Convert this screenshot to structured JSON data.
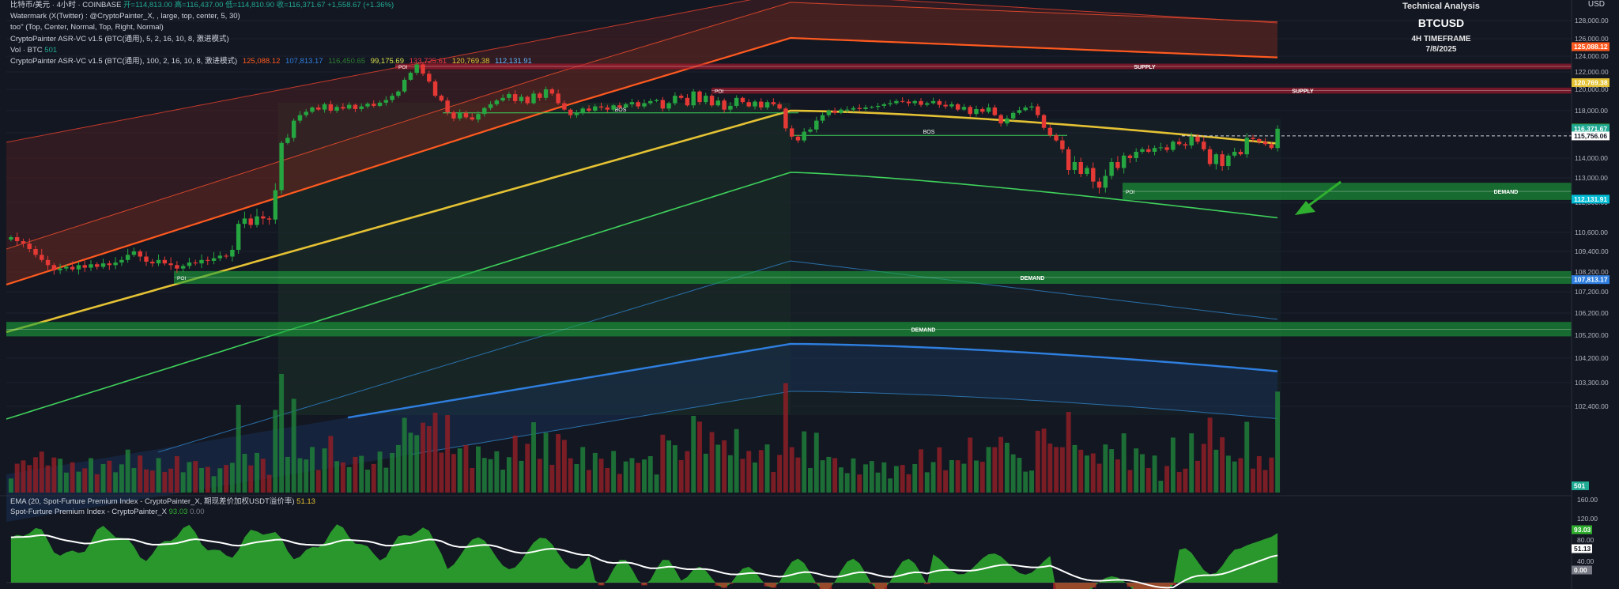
{
  "legend": {
    "main": {
      "text": "比特币/美元 · 4小时 · COINBASE",
      "o": "开=114,813.00",
      "h": "高=116,437.00",
      "l": "低=114,810.90",
      "c": "收=116,371.67",
      "chg": "+1,558.67 (+1.36%)"
    },
    "watermark_line": "Watermark (X(Twitter) : @CryptoPainter_X, , large, top, center, 5, 30)",
    "too_line": "too\" (Top, Center, Normal, Top, Right, Normal)",
    "asr1_line": "CryptoPainter ASR-VC v1.5 (BTC(通用), 5, 2, 16, 10, 8, 激进模式)",
    "vol_label": "Vol · BTC",
    "vol_value": "501",
    "asr2_label": "CryptoPainter ASR-VC v1.5 (BTC(通用), 100, 2, 16, 10, 8, 激进模式)",
    "asr2_values": [
      "125,088.12",
      "107,813.17",
      "116,450.65",
      "99,175.69",
      "133,725.61",
      "120,769.38",
      "112,131.91"
    ]
  },
  "sub_legend": {
    "ema_label": "EMA (20, Spot-Furture Premium Index - CryptoPainter_X, 期现差价加权USDT溢价率)",
    "ema_value": "51.13",
    "idx_label": "Spot-Furture Premium Index - CryptoPainter_X",
    "idx_values": [
      "93.03",
      "0.00"
    ]
  },
  "watermark": {
    "line1": "Technical Analysis",
    "line2": "BTCUSD",
    "line3": "4H TIMEFRAME",
    "line4": "7/8/2025"
  },
  "currency": "USD",
  "colors": {
    "bg": "#131722",
    "up": "#22ab94",
    "down": "#f23645",
    "supply": "#b2182b",
    "demand": "#1aa33a",
    "bull_fill": "#2fae2f",
    "bear_fill": "#c62828",
    "orange": "#ff5a1f",
    "gold": "#e5c234",
    "green_ma": "#3fd25b",
    "blue_ma": "#2f7fe0"
  },
  "chart_data": {
    "type": "candlestick",
    "symbol": "BTCUSD",
    "timeframe": "4H",
    "y_ticks": [
      128000,
      126000,
      124000,
      122000,
      120000,
      118000,
      116000,
      114000,
      113000,
      112000,
      110600,
      109400,
      108200,
      107200,
      106200,
      105200,
      104200,
      103300,
      102400
    ],
    "y_tick_labels": [
      "128,000.00",
      "126,000.00",
      "124,000.00",
      "122,000.00",
      "120,000.00",
      "118,000.00",
      "116,000.00",
      "114,000.00",
      "113,000.00",
      "112,000.00",
      "110,600.00",
      "109,400.00",
      "108,200.00",
      "107,200.00",
      "106,200.00",
      "105,200.00",
      "104,200.00",
      "103,300.00",
      "102,400.00"
    ],
    "price_labels": [
      {
        "value": 125088.12,
        "text": "125,088.12",
        "color": "#ff5a1f"
      },
      {
        "value": 120769.38,
        "text": "120,769.38",
        "color": "#e5c234"
      },
      {
        "value": 116450.65,
        "text": "116,450.65",
        "color": "#2e7d32"
      },
      {
        "value": 116371.67,
        "text": "116,371.67",
        "color": "#22ab94",
        "extra": "01:09:51"
      },
      {
        "value": 115756.06,
        "text": "115,756.06",
        "color": "#ffffff"
      },
      {
        "value": 112131.91,
        "text": "112,131.91",
        "color": "#00bcd4"
      },
      {
        "value": 107813.17,
        "text": "107,813.17",
        "color": "#2f7fe0"
      }
    ],
    "zones": [
      {
        "type": "supply",
        "label": "SUPPLY",
        "from": 122350,
        "to": 123050,
        "poi": true
      },
      {
        "type": "supply",
        "label": "SUPPLY",
        "from": 119600,
        "to": 120200,
        "poi": true
      },
      {
        "type": "demand",
        "label": "DEMAND",
        "from": 112100,
        "to": 112800,
        "poi": true
      },
      {
        "type": "demand",
        "label": "DEMAND",
        "from": 107600,
        "to": 108250,
        "poi": true
      },
      {
        "type": "demand",
        "label": "DEMAND",
        "from": 105150,
        "to": 105800,
        "poi": false
      }
    ],
    "bos": [
      {
        "label": "BOS",
        "value": 117800
      },
      {
        "label": "BOS",
        "value": 115800
      }
    ],
    "zone_labels": {
      "poi": "POI"
    },
    "closes": [
      110300,
      110050,
      109900,
      109550,
      109200,
      108900,
      108600,
      108300,
      108400,
      108500,
      108350,
      108600,
      108450,
      108650,
      108500,
      108700,
      108600,
      108750,
      108900,
      109200,
      109400,
      109100,
      108800,
      108700,
      108900,
      108700,
      108600,
      108400,
      108550,
      108750,
      108700,
      108900,
      108850,
      109000,
      109150,
      109100,
      109500,
      111000,
      111250,
      110950,
      111350,
      111250,
      111200,
      112500,
      115200,
      115600,
      117100,
      117600,
      117900,
      118300,
      118100,
      118600,
      118000,
      118350,
      118200,
      118550,
      118150,
      118400,
      118650,
      118450,
      118750,
      119000,
      119400,
      119800,
      121100,
      121900,
      122950,
      121800,
      120900,
      119400,
      118950,
      117850,
      117300,
      117800,
      117400,
      117200,
      117700,
      118250,
      118600,
      118950,
      119200,
      119550,
      118900,
      119300,
      118700,
      119600,
      119200,
      120000,
      119600,
      118700,
      118100,
      117600,
      117800,
      118200,
      118000,
      118400,
      118300,
      118100,
      118500,
      118300,
      118600,
      118800,
      118400,
      118700,
      118900,
      119000,
      118200,
      118700,
      119400,
      119200,
      118500,
      119800,
      118800,
      119400,
      118500,
      118950,
      118100,
      118450,
      119200,
      118800,
      118400,
      118850,
      118300,
      118800,
      118600,
      118200,
      116400,
      115700,
      115400,
      116100,
      116300,
      117100,
      117600,
      118000,
      117800,
      118100,
      118100,
      118250,
      118150,
      118300,
      118350,
      118450,
      118600,
      118700,
      118900,
      118850,
      118700,
      118900,
      118550,
      118700,
      118900,
      118550,
      118400,
      118600,
      118100,
      118350,
      117700,
      118150,
      117900,
      118300,
      117600,
      116850,
      117300,
      117800,
      118050,
      118300,
      118400,
      117600,
      116450,
      115800,
      115400,
      114700,
      113400,
      113800,
      113200,
      113500,
      112850,
      112600,
      113100,
      113800,
      113500,
      114200,
      114000,
      114500,
      114700,
      114500,
      114800,
      114850,
      114650,
      115300,
      115100,
      115000,
      115700,
      115300,
      114700,
      113700,
      114300,
      113600,
      114200,
      114500,
      114300,
      115600,
      115500,
      115300,
      115100,
      114800,
      116372
    ],
    "volume_max": 4000,
    "sub_ticks": [
      160,
      120,
      80,
      40
    ],
    "sub_tick_labels": [
      "160.00",
      "120.00",
      "80.00",
      "40.00"
    ],
    "sub_labels": [
      {
        "value": 93.03,
        "text": "93.03",
        "color": "#2fae2f"
      },
      {
        "value": 51.13,
        "text": "51.13",
        "color": "#ffffff"
      },
      {
        "value": 0,
        "text": "0.00",
        "color": "#787b86"
      }
    ],
    "vol_label": {
      "text": "501",
      "color": "#22ab94"
    }
  }
}
